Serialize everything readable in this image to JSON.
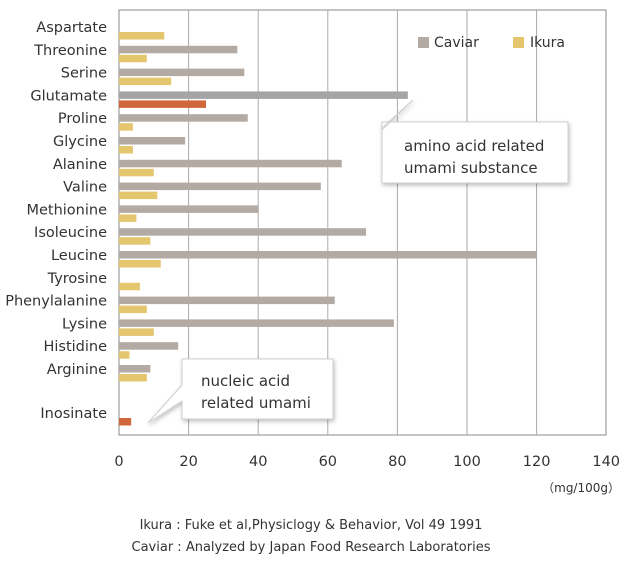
{
  "chart_data": {
    "type": "bar",
    "orientation": "horizontal",
    "categories": [
      "Aspartate",
      "Threonine",
      "Serine",
      "Glutamate",
      "Proline",
      "Glycine",
      "Alanine",
      "Valine",
      "Methionine",
      "Isoleucine",
      "Leucine",
      "Tyrosine",
      "Phenylalanine",
      "Lysine",
      "Histidine",
      "Arginine",
      "Inosinate"
    ],
    "series": [
      {
        "name": "Caviar",
        "color": "#b3aaa4",
        "values": [
          0,
          34,
          36,
          83,
          37,
          19,
          64,
          58,
          40,
          71,
          120,
          0,
          62,
          79,
          17,
          9,
          0
        ]
      },
      {
        "name": "Ikura",
        "color": "#e4c66e",
        "values": [
          13,
          8,
          15,
          25,
          4,
          4,
          10,
          11,
          5,
          9,
          12,
          6,
          8,
          10,
          3,
          8,
          3.5
        ]
      }
    ],
    "highlight": {
      "Glutamate": {
        "Caviar": "#a5a5a5",
        "Ikura": "#d0673b"
      },
      "Inosinate": {
        "Ikura": "#d0673b"
      }
    },
    "xlim": [
      0,
      140
    ],
    "xticks": [
      0,
      20,
      40,
      60,
      80,
      100,
      120,
      140
    ],
    "xlabel": "（mg/100g）",
    "grid": true,
    "legend": {
      "position": "top-right",
      "entries": [
        "Caviar",
        "Ikura"
      ]
    },
    "annotations": [
      {
        "id": "amino",
        "lines": [
          "amino acid related",
          "umami substance"
        ],
        "points_to": "Glutamate"
      },
      {
        "id": "nucleic",
        "lines": [
          "nucleic acid",
          "related umami"
        ],
        "points_to": "Inosinate"
      }
    ]
  },
  "sources": [
    "Ikura : Fuke et al,Physiclogy & Behavior, Vol 49 1991",
    "Caviar : Analyzed by Japan Food Research Laboratories"
  ]
}
